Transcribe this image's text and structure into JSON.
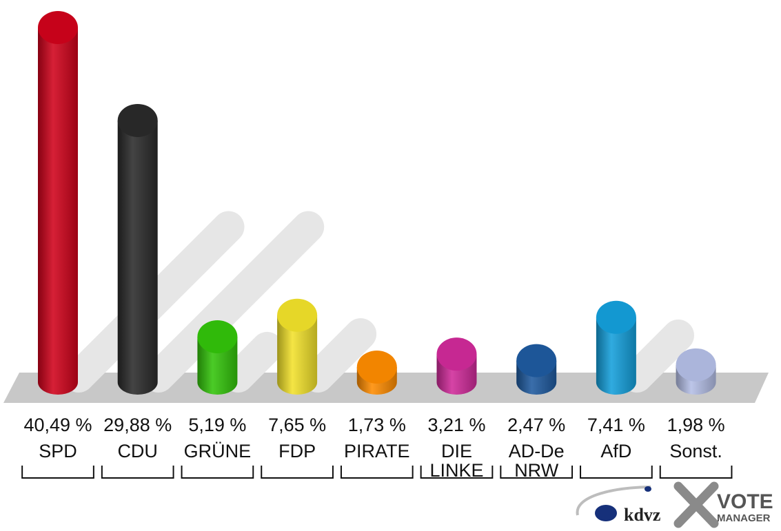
{
  "chart_data": {
    "type": "bar",
    "categories": [
      "SPD",
      "CDU",
      "GRÜNE",
      "FDP",
      "PIRATE",
      "DIE LINKE",
      "AD-De NRW",
      "AfD",
      "Sonst."
    ],
    "category_lines": [
      [
        "SPD"
      ],
      [
        "CDU"
      ],
      [
        "GRÜNE"
      ],
      [
        "FDP"
      ],
      [
        "PIRATE"
      ],
      [
        "DIE",
        "LINKE"
      ],
      [
        "AD-De",
        "NRW"
      ],
      [
        "AfD"
      ],
      [
        "Sonst."
      ]
    ],
    "values": [
      40.49,
      29.88,
      5.19,
      7.65,
      1.73,
      3.21,
      2.47,
      7.41,
      1.98
    ],
    "value_labels": [
      "40,49 %",
      "29,88 %",
      "5,19 %",
      "7,65 %",
      "1,73 %",
      "3,21 %",
      "2,47 %",
      "7,41 %",
      "1,98 %"
    ],
    "colors": [
      "#d0021b",
      "#2a2a2a",
      "#33c40a",
      "#f2e22a",
      "#ff8c00",
      "#d02a9a",
      "#1f5aa0",
      "#14a0dc",
      "#b4bee6"
    ],
    "ylim": [
      0,
      40.49
    ],
    "grid": false,
    "legend": "none"
  },
  "branding": {
    "kdvz": "kdvz",
    "vote": "VOTE",
    "manager": "MANAGER"
  }
}
